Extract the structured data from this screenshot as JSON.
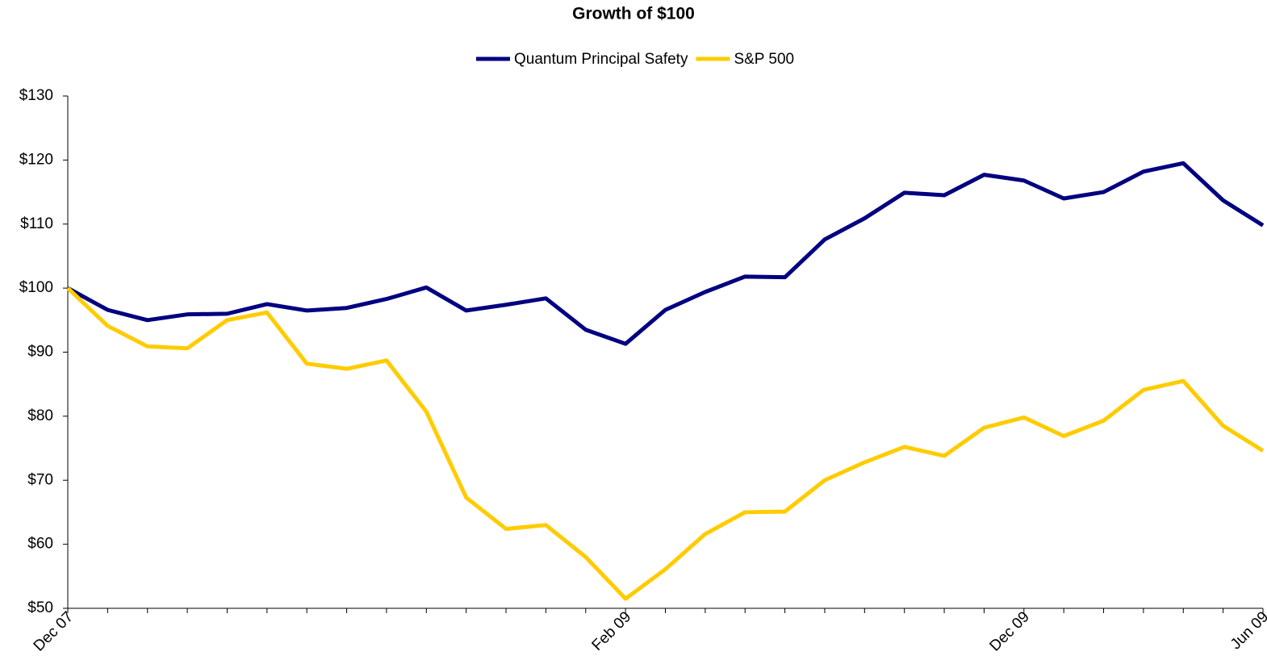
{
  "chart_data": {
    "type": "line",
    "title": "Growth of $100",
    "categories": [
      "Dec 07",
      null,
      null,
      null,
      null,
      null,
      null,
      null,
      null,
      null,
      null,
      null,
      null,
      null,
      "Feb 09",
      null,
      null,
      null,
      null,
      null,
      null,
      null,
      null,
      null,
      "Dec 09",
      null,
      null,
      null,
      null,
      null,
      "Jun 09"
    ],
    "series": [
      {
        "name": "Quantum Principal Safety",
        "color": "#000080",
        "values": [
          100.0,
          96.6,
          95.0,
          95.9,
          96.0,
          97.5,
          96.5,
          96.9,
          98.3,
          100.1,
          96.5,
          97.4,
          98.4,
          93.5,
          91.3,
          96.6,
          99.4,
          101.8,
          101.7,
          107.6,
          110.9,
          114.9,
          114.5,
          117.7,
          116.8,
          114.0,
          115.0,
          118.2,
          119.5,
          113.7,
          109.8
        ]
      },
      {
        "name": "S&P 500",
        "color": "#FFCC00",
        "values": [
          100.0,
          94.1,
          90.9,
          90.6,
          95.0,
          96.2,
          88.2,
          87.4,
          88.7,
          80.7,
          67.3,
          62.4,
          63.0,
          58.0,
          51.5,
          56.1,
          61.6,
          65.0,
          65.1,
          70.0,
          72.8,
          75.2,
          73.8,
          78.2,
          79.8,
          76.9,
          79.3,
          84.1,
          85.5,
          78.5,
          74.6
        ]
      }
    ],
    "ylim": [
      50,
      130
    ],
    "yticks": [
      {
        "value": 50,
        "label": "$50"
      },
      {
        "value": 60,
        "label": "$60"
      },
      {
        "value": 70,
        "label": "$70"
      },
      {
        "value": 80,
        "label": "$80"
      },
      {
        "value": 90,
        "label": "$90"
      },
      {
        "value": 100,
        "label": "$100"
      },
      {
        "value": 110,
        "label": "$110"
      },
      {
        "value": 120,
        "label": "$120"
      },
      {
        "value": 130,
        "label": "$130"
      }
    ],
    "grid": false,
    "legend": "top"
  }
}
